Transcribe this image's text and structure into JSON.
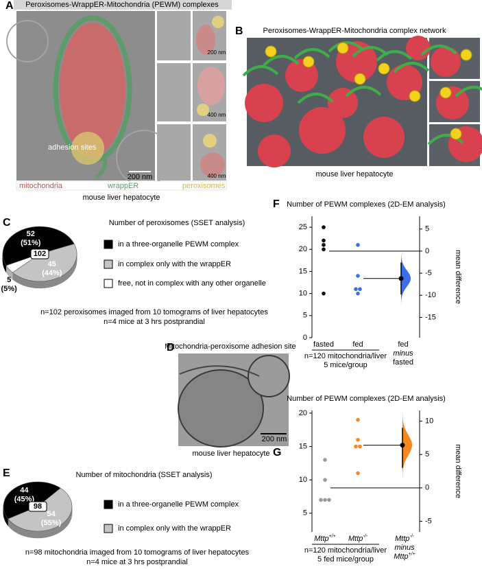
{
  "panel_a": {
    "label": "A",
    "title": "Peroxisomes-WrappER-Mitochondria (PEWM) complexes",
    "annotation": "adhesion sites",
    "scale_bars": [
      "200 nm",
      "200 nm",
      "400 nm",
      "400 nm"
    ],
    "legend": [
      "mitochondria",
      "wrappER",
      "peroxisomes"
    ],
    "caption": "mouse liver hepatocyte"
  },
  "panel_b": {
    "label": "B",
    "title": "Peroxisomes-WrappER-Mitochondria complex network",
    "caption": "mouse liver hepatocyte"
  },
  "panel_d": {
    "label": "D",
    "title": "Mitochondria-peroxisome adhesion site",
    "scale_bar": "200 nm",
    "caption": "mouse liver hepatocyte"
  },
  "chart_data": [
    {
      "type": "pie",
      "panel": "C",
      "title": "Number of peroxisomes (SSET analysis)",
      "total": 102,
      "categories": [
        "in a three-organelle PEWM complex",
        "in complex only with the wrappER",
        "free, not in complex with any other organelle"
      ],
      "values": [
        52,
        45,
        5
      ],
      "percent_labels": [
        "(51%)",
        "(44%)",
        "(5%)"
      ],
      "colors": [
        "#000000",
        "#c4c4c4",
        "#ffffff"
      ],
      "notes": [
        "n=102 peroxisomes imaged from 10 tomograms of liver hepatocytes",
        "n=4 mice at 3 hrs postprandial"
      ]
    },
    {
      "type": "pie",
      "panel": "E",
      "title": "Number of mitochondria (SSET analysis)",
      "total": 98,
      "categories": [
        "in a three-organelle PEWM complex",
        "in complex only with the wrappER"
      ],
      "values": [
        44,
        54
      ],
      "percent_labels": [
        "(45%)",
        "(55%)"
      ],
      "colors": [
        "#000000",
        "#c4c4c4"
      ],
      "notes": [
        "n=98 mitochondria imaged from 10 tomograms of liver hepatocytes",
        "n=4 mice at 3 hrs postprandial"
      ]
    },
    {
      "type": "estimation",
      "panel": "F",
      "title": "Number of PEWM complexes (2D-EM analysis)",
      "series": [
        {
          "name": "fasted",
          "color": "#000000",
          "values": [
            25,
            22,
            21,
            20,
            10
          ]
        },
        {
          "name": "fed",
          "color": "#3b6fe8",
          "values": [
            21,
            14,
            11,
            11,
            10
          ]
        }
      ],
      "diff_label": [
        {
          "text": "fed",
          "italic": false
        },
        {
          "text": "minus",
          "italic": true
        },
        {
          "text": "fasted",
          "italic": false
        }
      ],
      "mean_difference": -6.2,
      "ci": [
        -9.8,
        -2.6
      ],
      "violin_color": "#3b6fe8",
      "ylim": [
        0,
        27.5
      ],
      "yticks": [
        0,
        5,
        10,
        15,
        20,
        25
      ],
      "y2lim": [
        -19.6,
        7.9
      ],
      "y2ticks": [
        5,
        0,
        -5,
        -10,
        -15
      ],
      "y2label": "mean difference",
      "notes": [
        "n=120 mitochondria/liver",
        "5 mice/group"
      ]
    },
    {
      "type": "estimation",
      "panel": "G",
      "title": "Number of PEWM complexes (2D-EM analysis)",
      "series": [
        {
          "name": "Mttp",
          "name_superscript": "+/+",
          "color": "#9a9a9a",
          "values": [
            13,
            10,
            7,
            7,
            7
          ]
        },
        {
          "name": "Mttp",
          "name_superscript": "-/-",
          "color": "#f5891f",
          "values": [
            19,
            16,
            15,
            15,
            11
          ]
        }
      ],
      "diff_label": [
        {
          "text": "Mttp",
          "sup": "-/-",
          "italic": true
        },
        {
          "text": "minus",
          "italic": true
        },
        {
          "text": "Mttp",
          "sup": "+/+",
          "italic": true
        }
      ],
      "mean_difference": 6.4,
      "ci": [
        3.0,
        9.0
      ],
      "violin_color": "#f5891f",
      "ylim": [
        2.2,
        20.4
      ],
      "yticks": [
        5,
        10,
        15,
        20
      ],
      "y2lim": [
        -6.6,
        11.6
      ],
      "y2ticks": [
        10,
        5,
        0,
        -5
      ],
      "y2label": "mean difference",
      "notes": [
        "n=120 mitochondria/liver",
        "5 fed mice/group"
      ]
    }
  ]
}
